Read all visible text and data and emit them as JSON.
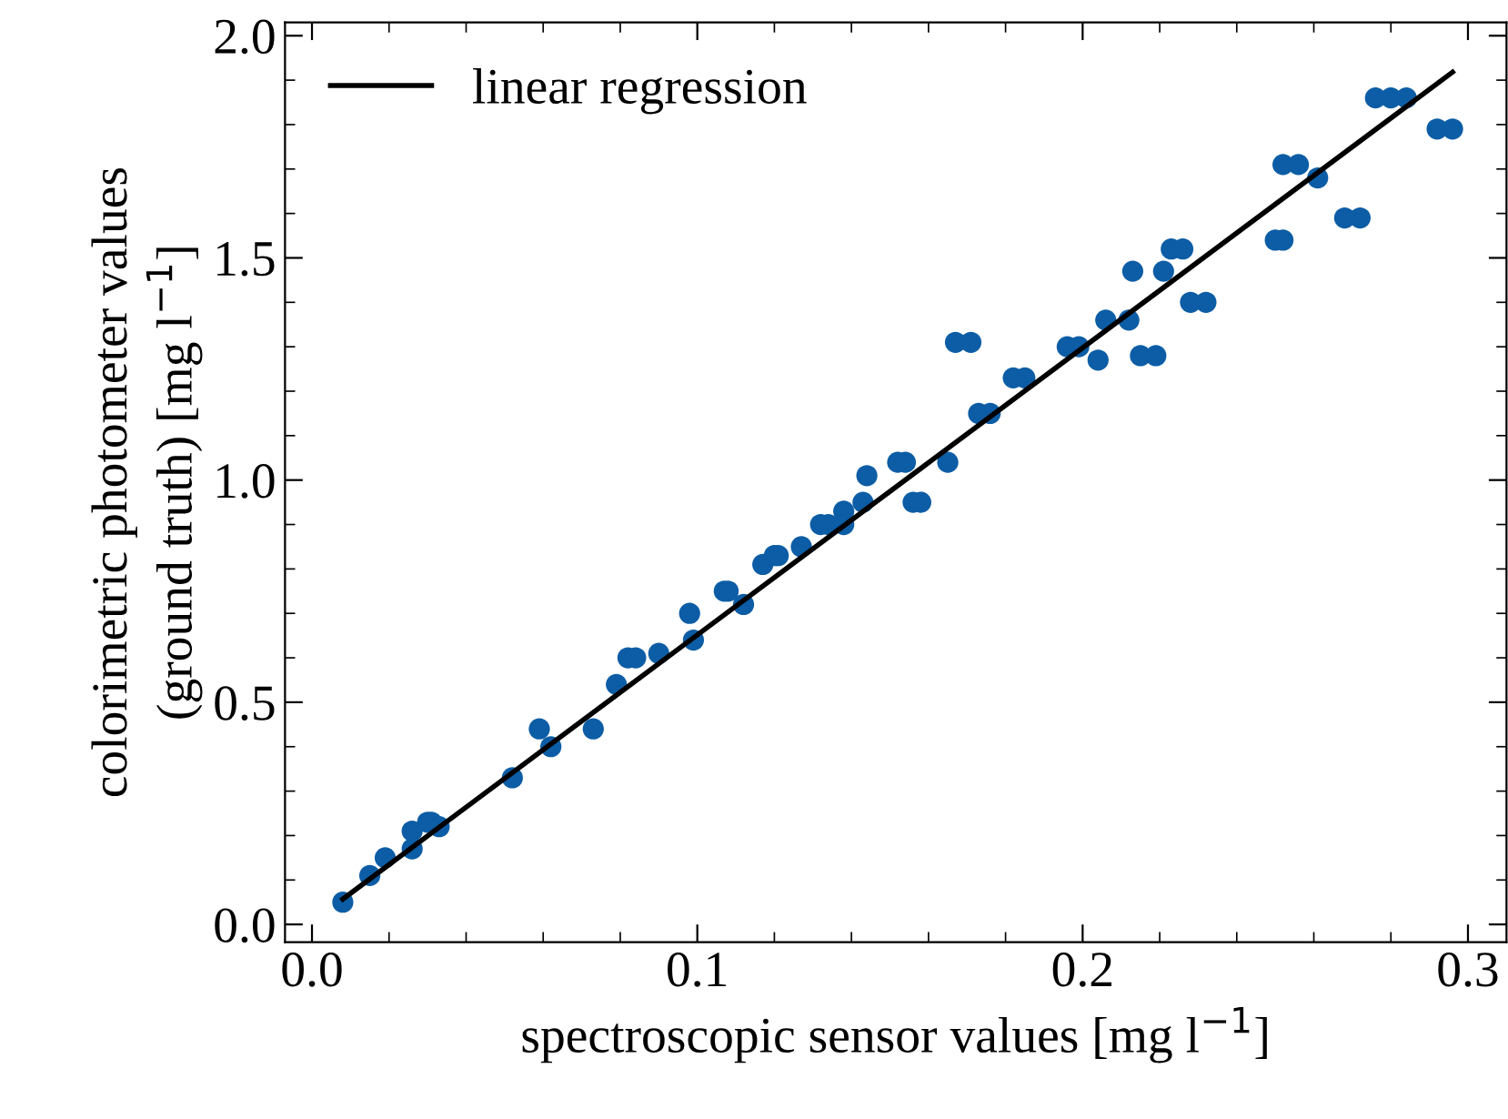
{
  "chart_data": {
    "type": "scatter",
    "xlabel": "spectroscopic sensor values [mg l$^{−1}$]",
    "ylabel": "colorimetric photometer values\n(ground truth) [mg l$^{−1}$]",
    "xlim": [
      -0.007,
      0.31
    ],
    "ylim": [
      -0.04,
      2.03
    ],
    "xticks": [
      {
        "value": 0,
        "label": "0.0"
      },
      0.1,
      0.2,
      0.3
    ],
    "yticks": [
      {
        "value": 0,
        "label": "0.0"
      },
      0.5,
      {
        "value": 1,
        "label": "1.0"
      },
      1.5,
      {
        "value": 2,
        "label": "2.0"
      }
    ],
    "grid": false,
    "legend": "top left",
    "series": [
      {
        "color": "#0c5da5",
        "marker": "circle",
        "x": [
          0.008,
          0.015,
          0.019,
          0.026,
          0.026,
          0.03,
          0.031,
          0.033,
          0.052,
          0.059,
          0.062,
          0.073,
          0.079,
          0.082,
          0.084,
          0.09,
          0.098,
          0.099,
          0.107,
          0.108,
          0.112,
          0.117,
          0.12,
          0.121,
          0.127,
          0.132,
          0.134,
          0.138,
          0.138,
          0.143,
          0.144,
          0.152,
          0.154,
          0.156,
          0.158,
          0.165,
          0.167,
          0.171,
          0.173,
          0.176,
          0.182,
          0.185,
          0.196,
          0.199,
          0.204,
          0.206,
          0.212,
          0.213,
          0.215,
          0.219,
          0.221,
          0.223,
          0.226,
          0.228,
          0.232,
          0.25,
          0.252,
          0.252,
          0.256,
          0.261,
          0.268,
          0.272,
          0.276,
          0.28,
          0.284,
          0.292,
          0.296
        ],
        "values": [
          0.05,
          0.11,
          0.15,
          0.21,
          0.17,
          0.23,
          0.23,
          0.22,
          0.33,
          0.44,
          0.4,
          0.44,
          0.54,
          0.6,
          0.6,
          0.61,
          0.7,
          0.64,
          0.75,
          0.75,
          0.72,
          0.81,
          0.83,
          0.83,
          0.85,
          0.9,
          0.9,
          0.93,
          0.9,
          0.95,
          1.01,
          1.04,
          1.04,
          0.95,
          0.95,
          1.04,
          1.31,
          1.31,
          1.15,
          1.15,
          1.23,
          1.23,
          1.3,
          1.3,
          1.27,
          1.36,
          1.36,
          1.47,
          1.28,
          1.28,
          1.47,
          1.52,
          1.52,
          1.4,
          1.4,
          1.54,
          1.54,
          1.71,
          1.71,
          1.68,
          1.59,
          1.59,
          1.86,
          1.86,
          1.86,
          1.79,
          1.79
        ]
      },
      {
        "type": "line",
        "name": "linear regression",
        "color": "#000000",
        "line_style": "solid",
        "x": [
          0.008,
          0.296
        ],
        "values": [
          0.057,
          1.918
        ]
      }
    ]
  }
}
